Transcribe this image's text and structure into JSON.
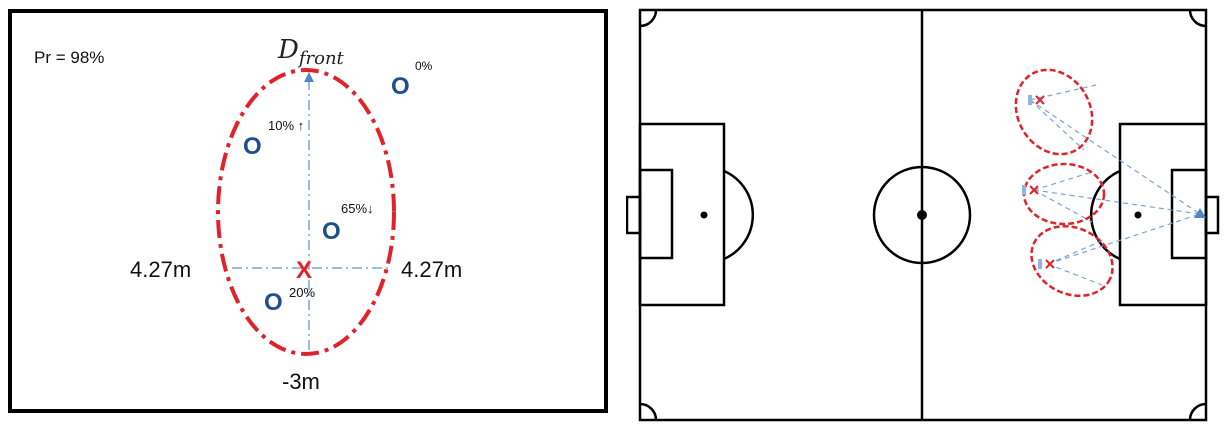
{
  "left_panel": {
    "probability_text": "Pr = 98%",
    "front_label_main": "D",
    "front_label_sub": "front",
    "lateral_left": "4.27m",
    "lateral_right": "4.27m",
    "back_label": "-3m",
    "ball_marker": "X",
    "opponent_marker": "O",
    "opponents": [
      {
        "label": "0%"
      },
      {
        "label": "10% ↑"
      },
      {
        "label": "65%↓"
      },
      {
        "label": "20%"
      }
    ],
    "colors": {
      "zone": "#e0232b",
      "axes": "#7aa6d6",
      "opponent": "#1f4e8c",
      "ball": "#e0232b"
    }
  },
  "right_panel": {
    "description": "football-pitch",
    "colors": {
      "lines": "#000000",
      "zones": "#e0232b",
      "rays": "#7aa6d6"
    }
  }
}
